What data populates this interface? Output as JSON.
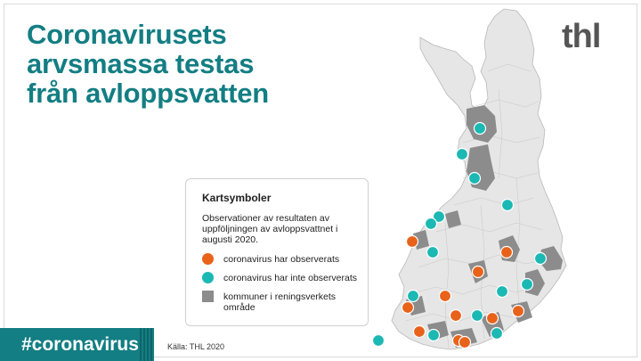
{
  "title": {
    "line1": "Coronavirusets",
    "line2": "arvsmassa testas",
    "line3": "från avloppsvatten"
  },
  "logo": "thl",
  "legend": {
    "title": "Kartsymboler",
    "description": "Observationer av resultaten av uppföljningen av avloppsvattnet i augusti 2020.",
    "items": [
      {
        "symbol": "circle",
        "color": "#e8621a",
        "label": "coronavirus har observerats"
      },
      {
        "symbol": "circle",
        "color": "#1cb8b3",
        "label": "coronavirus har inte observerats"
      },
      {
        "symbol": "square",
        "color": "#8c8c8c",
        "label": "kommuner i reningsverkets område"
      }
    ]
  },
  "hashtag": "#coronavirus",
  "source": "Källa: THL 2020",
  "colors": {
    "brand": "#137e83",
    "observed": "#e8621a",
    "not_observed": "#1cb8b3",
    "treatment_area": "#8c8c8c",
    "map_fill": "#e6e6e6"
  }
}
